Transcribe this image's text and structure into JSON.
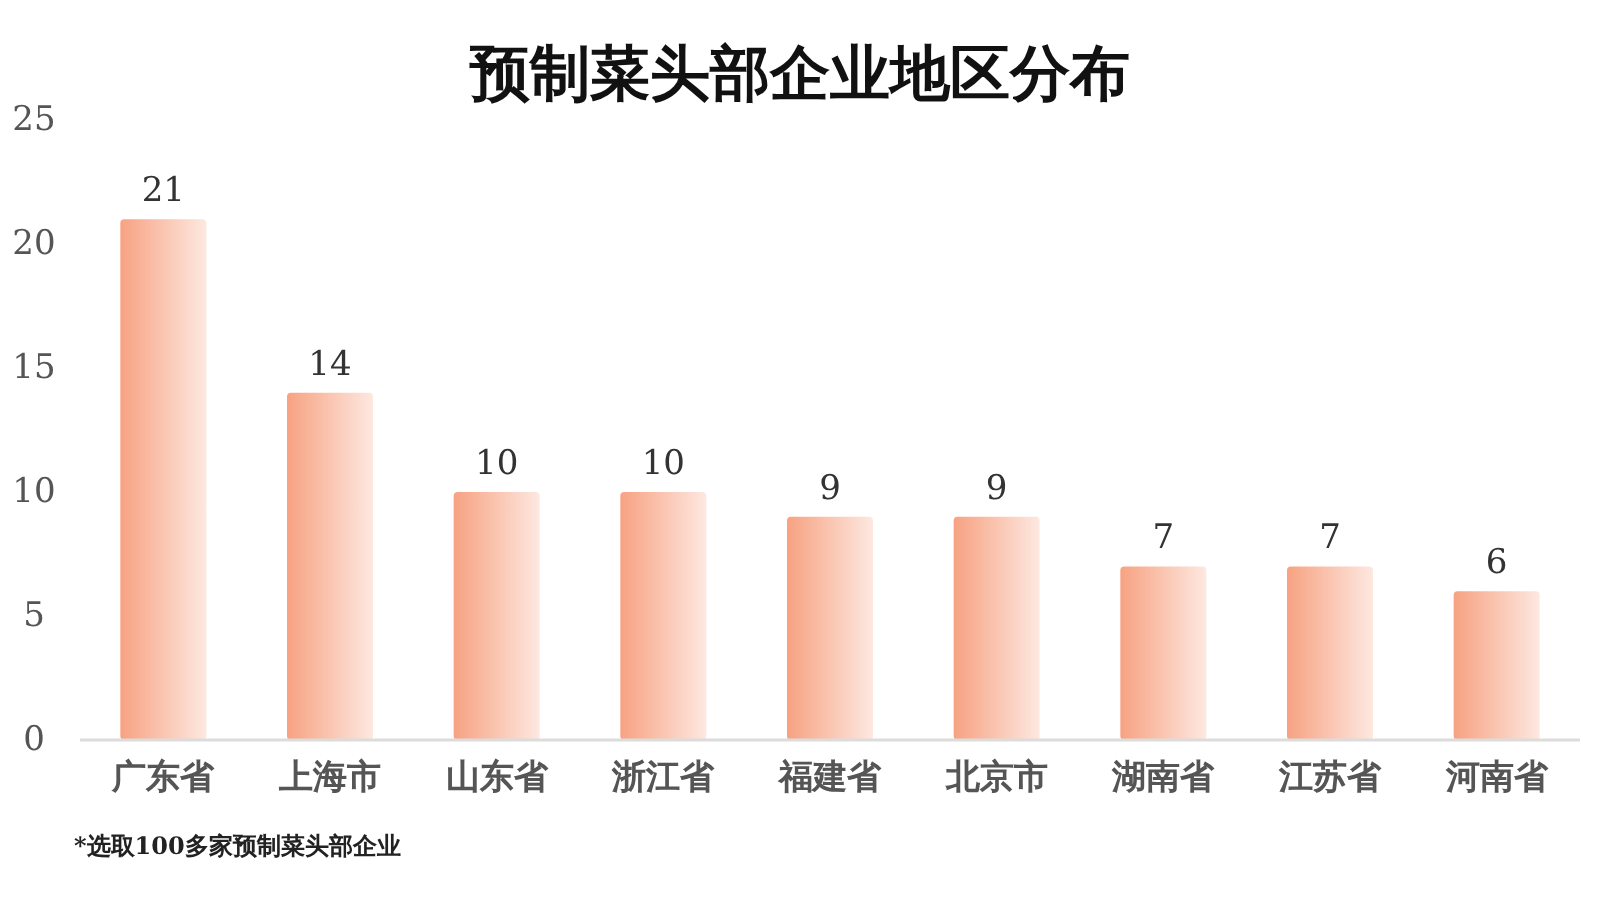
{
  "chart_data": {
    "type": "bar",
    "title": "预制菜头部企业地区分布",
    "categories": [
      "广东省",
      "上海市",
      "山东省",
      "浙江省",
      "福建省",
      "北京市",
      "湖南省",
      "江苏省",
      "河南省"
    ],
    "values": [
      21,
      14,
      10,
      10,
      9,
      9,
      7,
      7,
      6
    ],
    "color": "#fac5b1",
    "ylim": [
      0,
      25
    ],
    "yticks": [
      0,
      5,
      10,
      15,
      20,
      25
    ],
    "data_labels": true,
    "annotations": [
      "*选取100多家预制菜头部企业"
    ]
  }
}
